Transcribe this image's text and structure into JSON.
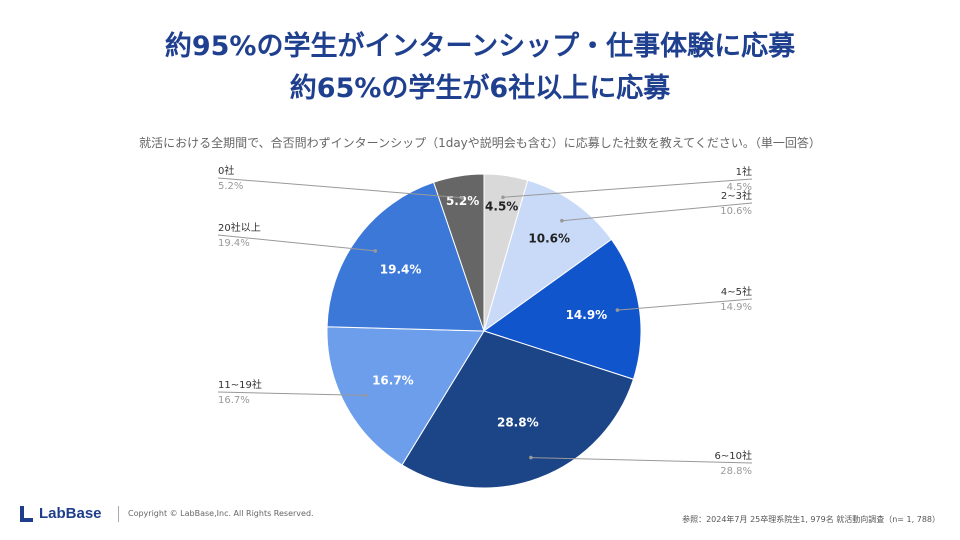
{
  "header": {
    "title_line1": "約95%の学生がインターンシップ・仕事体験に応募",
    "title_line2": "約65%の学生が6社以上に応募"
  },
  "question": "就活における全期間で、合否問わずインターンシップ（1dayや説明会も含む）に応募した社数を教えてください。（単一回答）",
  "footer": {
    "logo_text": "LabBase",
    "copyright": "Copyright ©  LabBase,Inc. All Rights Reserved.",
    "source": "参照：2024年7月  25卒理系院生1, 979名  就活動向調査（n=  1, 788）"
  },
  "colors": {
    "title": "#1f3f8f",
    "slices": [
      "#d9d9d9",
      "#c9daf8",
      "#1155cc",
      "#1c4587",
      "#6d9eeb",
      "#3c78d8",
      "#666666"
    ]
  },
  "chart_data": {
    "type": "pie",
    "categories": [
      "1社",
      "2~3社",
      "4~5社",
      "6~10社",
      "11~19社",
      "20社以上",
      "0社"
    ],
    "values": [
      4.5,
      10.6,
      14.9,
      28.8,
      16.7,
      19.4,
      5.2
    ],
    "value_labels": [
      "4.5%",
      "10.6%",
      "14.9%",
      "28.8%",
      "16.7%",
      "19.4%",
      "5.2%"
    ],
    "legend": "callout labels outside slices"
  }
}
